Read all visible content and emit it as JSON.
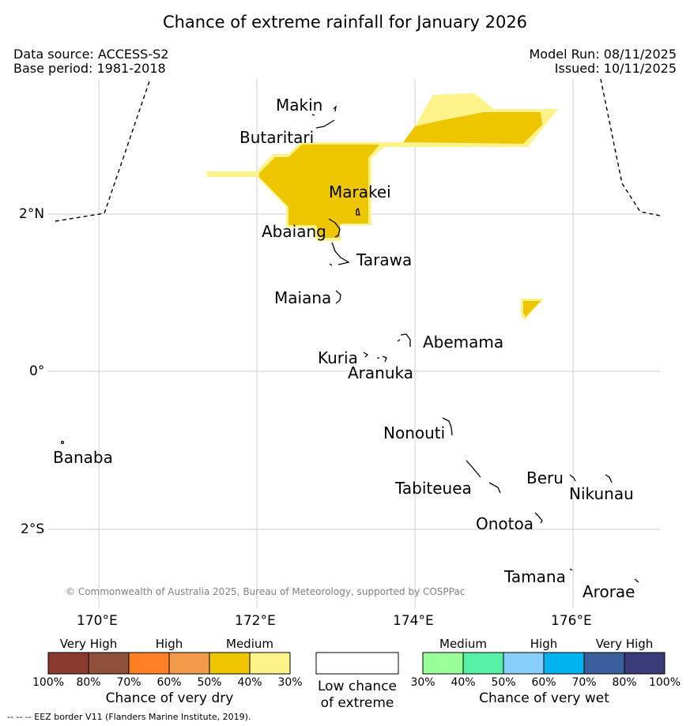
{
  "title": "Chance of extreme rainfall for January 2026",
  "header": {
    "data_source": "Data source: ACCESS-S2",
    "base_period": "Base period: 1981-2018",
    "model_run": "Model Run: 08/11/2025",
    "issued": "Issued: 10/11/2025"
  },
  "map": {
    "lat_labels": [
      "2°N",
      "0°",
      "2°S"
    ],
    "lon_labels": [
      "170°E",
      "172°E",
      "174°E",
      "176°E"
    ],
    "places": [
      "Makin",
      "Butaritari",
      "Marakei",
      "Abaiang",
      "Tarawa",
      "Maiana",
      "Abemama",
      "Kuria",
      "Aranuka",
      "Nonouti",
      "Banaba",
      "Tabiteuea",
      "Beru",
      "Nikunau",
      "Onotoa",
      "Tamana",
      "Arorae"
    ],
    "copyright": "© Commonwealth of Australia 2025, Bureau of Meteorology, supported by COSPPac"
  },
  "colors": {
    "dry_very_high_1": "#8b3a2f",
    "dry_very_high_2": "#8b4f3a",
    "dry_high_1": "#ff7f27",
    "dry_high_2": "#f09a4a",
    "dry_medium_1": "#eec600",
    "dry_medium_2": "#fdf38a",
    "wet_medium_1": "#99ff99",
    "wet_medium_2": "#55f0a3",
    "wet_high_1": "#87cefa",
    "wet_high_2": "#00b2ee",
    "wet_very_high_1": "#3a5f9c",
    "wet_very_high_2": "#3c3b7a"
  },
  "legend": {
    "dry": {
      "categories": [
        "Very High",
        "High",
        "Medium"
      ],
      "ticks": [
        "100%",
        "80%",
        "70%",
        "60%",
        "50%",
        "40%",
        "30%"
      ],
      "caption": "Chance of very dry"
    },
    "low": {
      "line1": "Low chance",
      "line2": "of extreme"
    },
    "wet": {
      "categories": [
        "Medium",
        "High",
        "Very High"
      ],
      "ticks": [
        "30%",
        "40%",
        "50%",
        "60%",
        "70%",
        "80%",
        "100%"
      ],
      "caption": "Chance of very wet"
    }
  },
  "footnote": "--  --  -- EEZ border V11 (Flanders Marine Institute, 2019)."
}
